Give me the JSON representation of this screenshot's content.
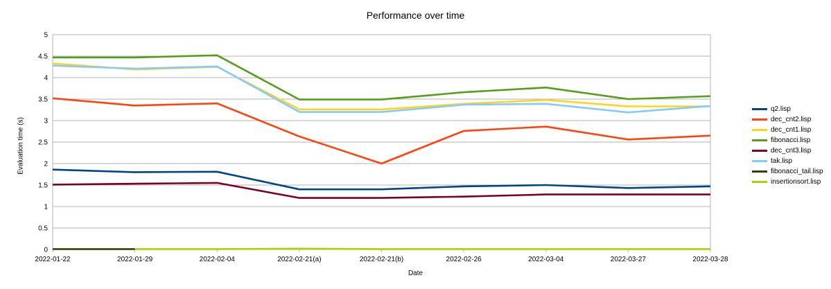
{
  "chart_data": {
    "type": "line",
    "title": "Performance over time",
    "xlabel": "Date",
    "ylabel": "Evaluation time (s)",
    "ylim": [
      0,
      5
    ],
    "yticks": [
      "0",
      "0.5",
      "1",
      "1.5",
      "2",
      "2.5",
      "3",
      "3.5",
      "4",
      "4.5",
      "5"
    ],
    "grid": true,
    "legend_position": "right",
    "categories": [
      "2022-01-22",
      "2022-01-29",
      "2022-02-04",
      "2022-02-21(a)",
      "2022-02-21(b)",
      "2022-02-26",
      "2022-03-04",
      "2022-03-27",
      "2022-03-28"
    ],
    "series": [
      {
        "name": "q2.lisp",
        "color": "#004586",
        "values": [
          1.86,
          1.8,
          1.81,
          1.4,
          1.4,
          1.47,
          1.5,
          1.43,
          1.47
        ]
      },
      {
        "name": "dec_cnt2.lisp",
        "color": "#ff420e",
        "values": [
          3.52,
          3.35,
          3.4,
          2.63,
          2.0,
          2.76,
          2.86,
          2.56,
          2.65
        ]
      },
      {
        "name": "dec_cnt1.lisp",
        "color": "#ffd320",
        "values": [
          4.33,
          4.19,
          4.25,
          3.26,
          3.26,
          3.39,
          3.48,
          3.33,
          3.33
        ]
      },
      {
        "name": "fibonacci.lisp",
        "color": "#579d1c",
        "values": [
          4.47,
          4.47,
          4.52,
          3.49,
          3.49,
          3.66,
          3.77,
          3.5,
          3.57
        ]
      },
      {
        "name": "dec_cnt3.lisp",
        "color": "#7e0021",
        "values": [
          1.51,
          1.53,
          1.55,
          1.2,
          1.2,
          1.23,
          1.28,
          1.28,
          1.28
        ]
      },
      {
        "name": "tak.lisp",
        "color": "#83caff",
        "values": [
          4.28,
          4.21,
          4.26,
          3.2,
          3.2,
          3.37,
          3.39,
          3.19,
          3.34
        ]
      },
      {
        "name": "fibonacci_tail.lisp",
        "color": "#314004",
        "values": [
          0.01,
          0.01,
          null,
          null,
          null,
          null,
          null,
          null,
          null
        ]
      },
      {
        "name": "insertionsort.lisp",
        "color": "#aecf00",
        "values": [
          null,
          0.01,
          0.01,
          0.02,
          0.01,
          0.01,
          0.01,
          0.01,
          0.01
        ]
      }
    ]
  }
}
